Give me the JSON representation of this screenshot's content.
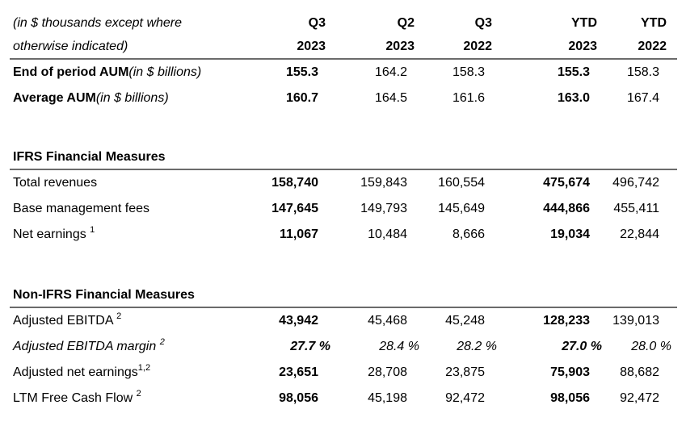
{
  "colors": {
    "text": "#000000",
    "rule": "#6b6b6b",
    "background": "#ffffff"
  },
  "table": {
    "header": {
      "note_line1": "(in $ thousands except where",
      "note_line2": "otherwise indicated)",
      "columns": [
        {
          "period": "Q3",
          "year": "2023"
        },
        {
          "period": "Q2",
          "year": "2023"
        },
        {
          "period": "Q3",
          "year": "2022"
        },
        {
          "period": "YTD",
          "year": "2023"
        },
        {
          "period": "YTD",
          "year": "2022"
        }
      ]
    },
    "aum_rows": [
      {
        "label": "End of period AUM",
        "label_note": "(in $ billions)",
        "values": [
          "155.3",
          "164.2",
          "158.3",
          "155.3",
          "158.3"
        ]
      },
      {
        "label": "Average AUM",
        "label_note": "(in $ billions)",
        "values": [
          "160.7",
          "164.5",
          "161.6",
          "163.0",
          "167.4"
        ]
      }
    ],
    "sections": [
      {
        "title": "IFRS Financial Measures",
        "rows": [
          {
            "label": "Total revenues",
            "sup": "",
            "values": [
              "158,740",
              "159,843",
              "160,554",
              "475,674",
              "496,742"
            ]
          },
          {
            "label": "Base management fees",
            "sup": "",
            "values": [
              "147,645",
              "149,793",
              "145,649",
              "444,866",
              "455,411"
            ]
          },
          {
            "label": "Net earnings ",
            "sup": "1",
            "values": [
              "11,067",
              "10,484",
              "8,666",
              "19,034",
              "22,844"
            ]
          }
        ]
      },
      {
        "title": "Non-IFRS Financial Measures",
        "rows": [
          {
            "label": "Adjusted EBITDA ",
            "sup": "2",
            "values": [
              "43,942",
              "45,468",
              "45,248",
              "128,233",
              "139,013"
            ]
          },
          {
            "label": "Adjusted EBITDA margin ",
            "sup": "2",
            "values": [
              "27.7 %",
              "28.4 %",
              "28.2 %",
              "27.0 %",
              "28.0 %"
            ]
          },
          {
            "label": "Adjusted net earnings",
            "sup": "1,2",
            "values": [
              "23,651",
              "28,708",
              "23,875",
              "75,903",
              "88,682"
            ]
          },
          {
            "label": "LTM Free Cash Flow ",
            "sup": "2",
            "values": [
              "98,056",
              "45,198",
              "92,472",
              "98,056",
              "92,472"
            ]
          }
        ]
      }
    ]
  }
}
